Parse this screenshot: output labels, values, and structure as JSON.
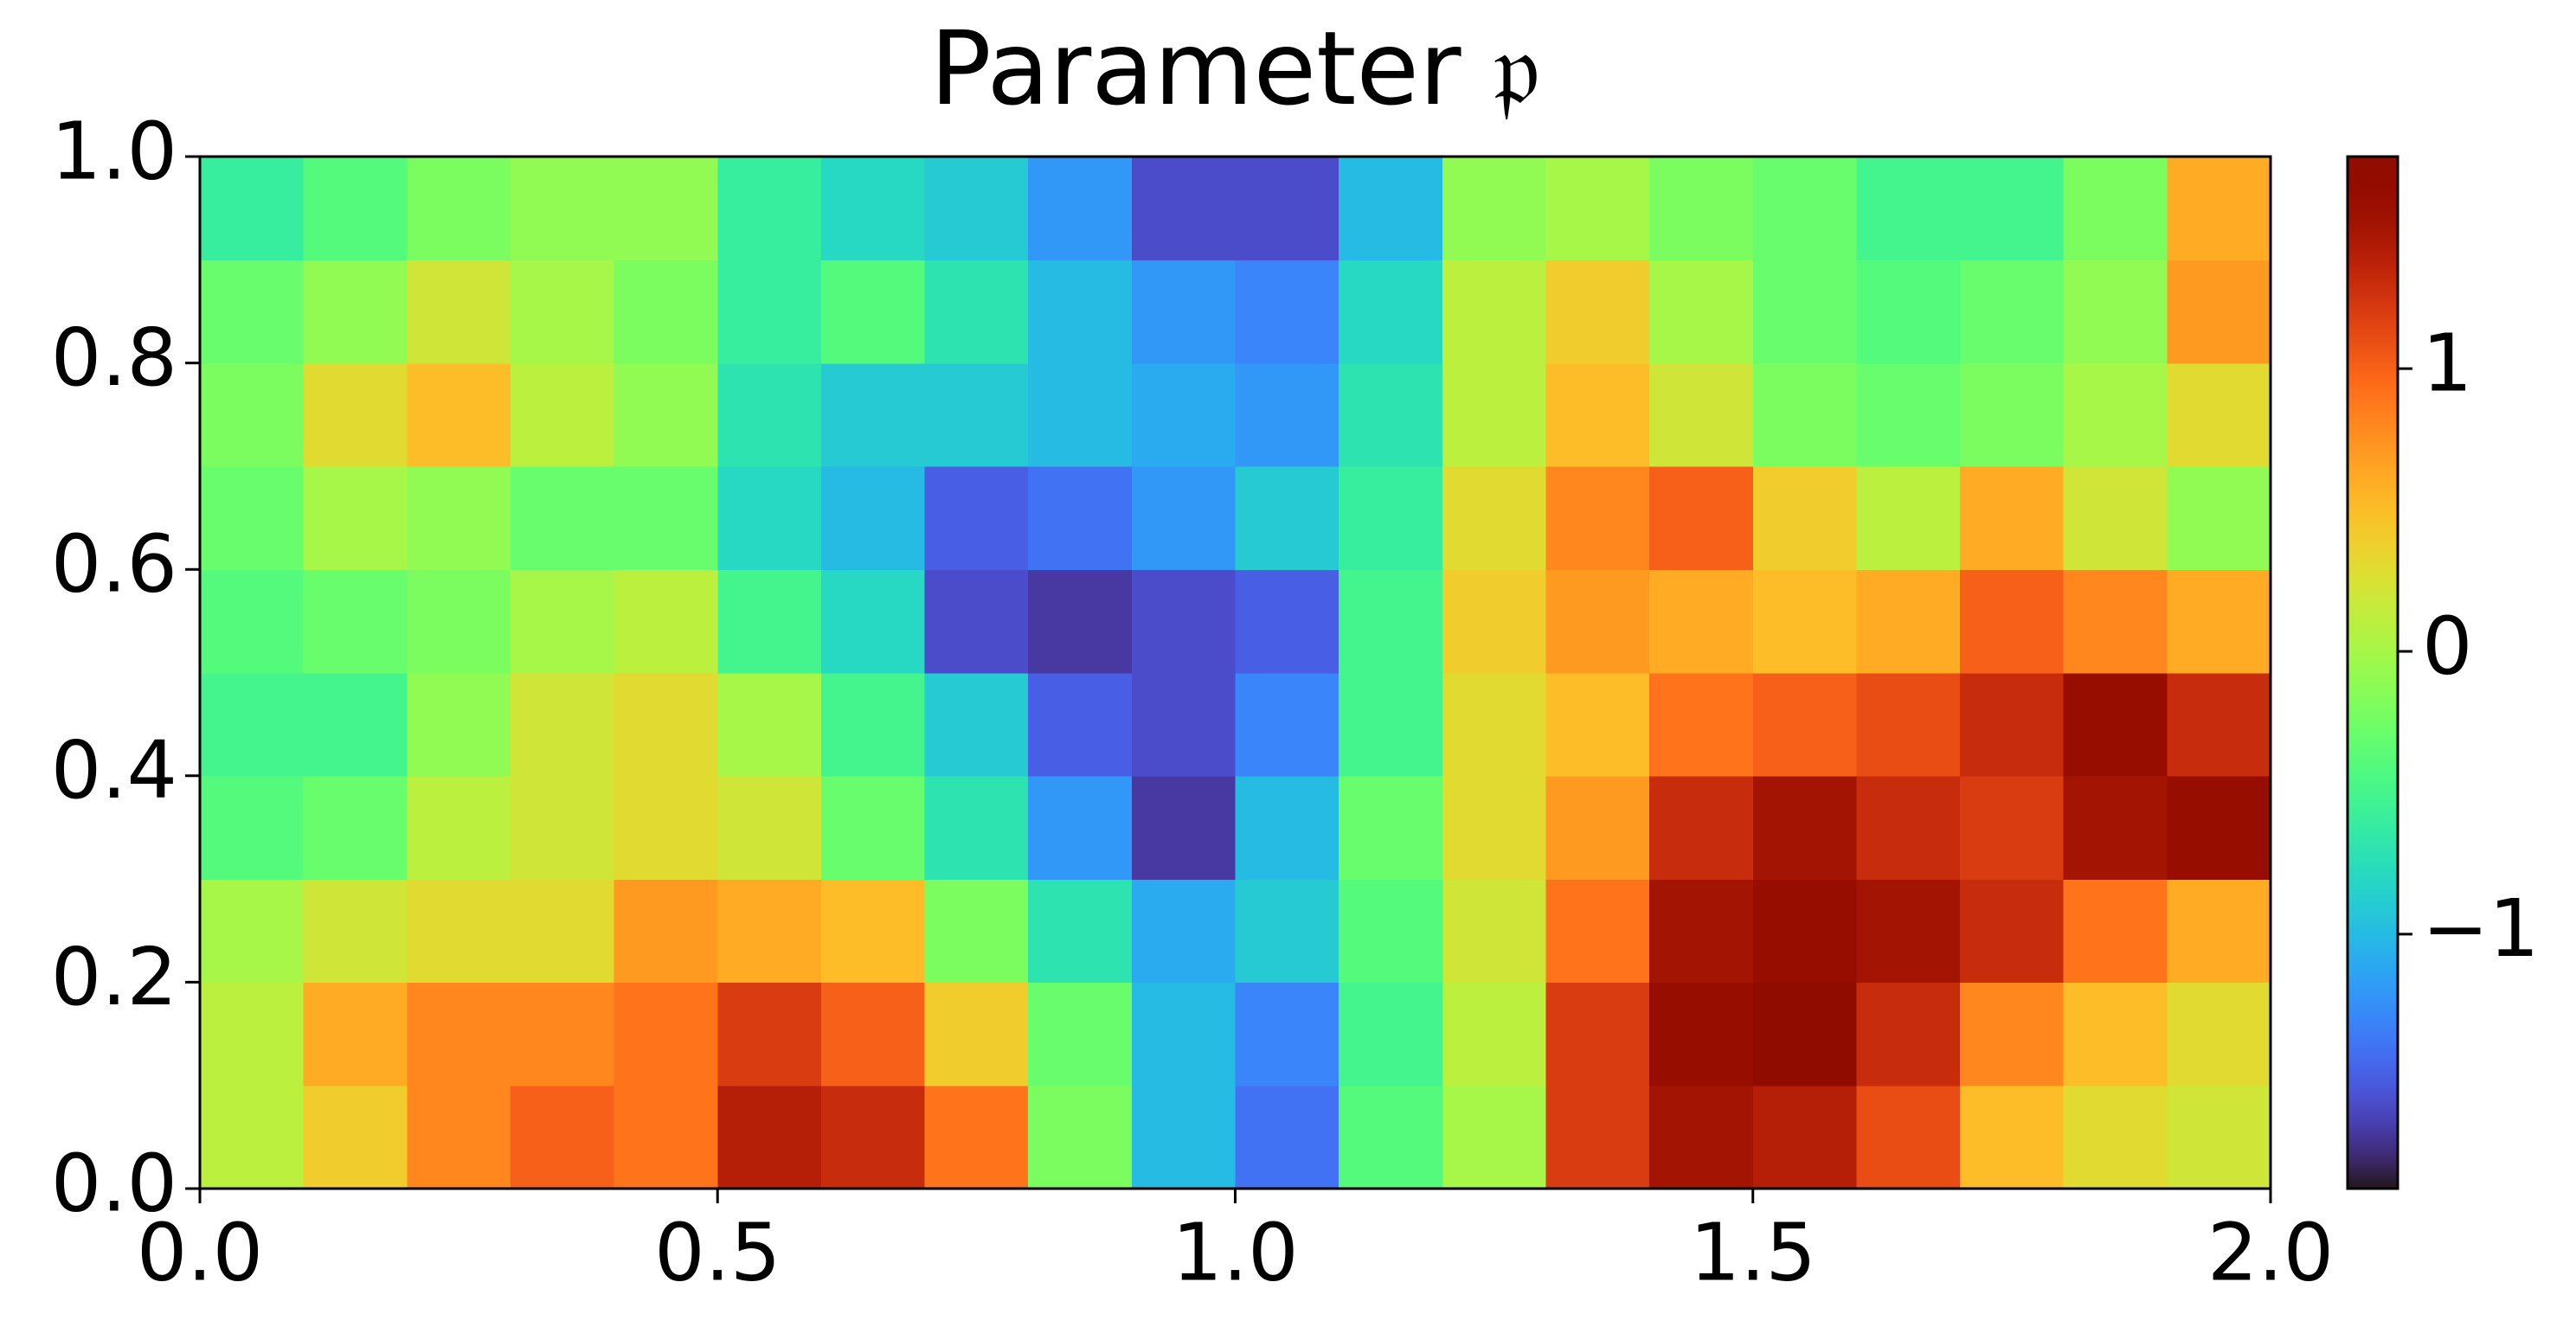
{
  "chart_data": {
    "type": "heatmap",
    "title": "Parameter 𝔭",
    "colormap": "turbo",
    "xlim": [
      0,
      2
    ],
    "ylim": [
      0,
      1
    ],
    "xbins": [
      0,
      0.1,
      0.2,
      0.3,
      0.4,
      0.5,
      0.6,
      0.7,
      0.8,
      0.9,
      1.0,
      1.1,
      1.2,
      1.3,
      1.4,
      1.5,
      1.6,
      1.7,
      1.8,
      1.9,
      2.0
    ],
    "ybins": [
      0,
      0.1,
      0.2,
      0.3,
      0.4,
      0.5,
      0.6,
      0.7,
      0.8,
      0.9,
      1.0
    ],
    "values": [
      [
        0.1,
        0.4,
        0.8,
        1.0,
        0.9,
        1.4,
        1.3,
        0.9,
        -0.2,
        -1.0,
        -1.4,
        -0.4,
        0.0,
        1.2,
        1.5,
        1.4,
        1.1,
        0.5,
        0.3,
        0.2
      ],
      [
        0.1,
        0.6,
        0.8,
        0.8,
        0.9,
        1.2,
        1.0,
        0.4,
        -0.3,
        -1.0,
        -1.3,
        -0.5,
        0.1,
        1.2,
        1.6,
        1.7,
        1.3,
        0.8,
        0.5,
        0.3
      ],
      [
        0.0,
        0.2,
        0.3,
        0.3,
        0.7,
        0.6,
        0.5,
        -0.2,
        -0.7,
        -1.1,
        -0.9,
        -0.4,
        0.2,
        0.9,
        1.5,
        1.6,
        1.5,
        1.3,
        0.9,
        0.6
      ],
      [
        -0.4,
        -0.3,
        0.1,
        0.2,
        0.3,
        0.2,
        -0.3,
        -0.7,
        -1.2,
        -1.7,
        -1.0,
        -0.3,
        0.3,
        0.7,
        1.3,
        1.5,
        1.3,
        1.2,
        1.5,
        1.6
      ],
      [
        -0.5,
        -0.5,
        -0.1,
        0.2,
        0.3,
        0.0,
        -0.5,
        -0.9,
        -1.5,
        -1.6,
        -1.3,
        -0.5,
        0.3,
        0.5,
        0.9,
        1.0,
        1.1,
        1.3,
        1.6,
        1.3
      ],
      [
        -0.4,
        -0.3,
        -0.2,
        0.0,
        0.1,
        -0.5,
        -0.8,
        -1.6,
        -1.7,
        -1.6,
        -1.5,
        -0.5,
        0.4,
        0.7,
        0.6,
        0.5,
        0.6,
        1.0,
        0.8,
        0.6
      ],
      [
        -0.3,
        0.0,
        -0.1,
        -0.3,
        -0.3,
        -0.8,
        -1.0,
        -1.5,
        -1.4,
        -1.2,
        -0.9,
        -0.6,
        0.3,
        0.8,
        1.0,
        0.4,
        0.1,
        0.6,
        0.2,
        -0.1
      ],
      [
        -0.2,
        0.3,
        0.5,
        0.1,
        -0.1,
        -0.7,
        -0.9,
        -0.9,
        -1.0,
        -1.1,
        -1.2,
        -0.7,
        0.1,
        0.5,
        0.2,
        -0.2,
        -0.3,
        -0.2,
        0.0,
        0.3
      ],
      [
        -0.3,
        -0.1,
        0.2,
        0.0,
        -0.2,
        -0.6,
        -0.4,
        -0.7,
        -1.0,
        -1.2,
        -1.3,
        -0.8,
        0.1,
        0.4,
        0.0,
        -0.3,
        -0.4,
        -0.3,
        -0.1,
        0.7
      ],
      [
        -0.6,
        -0.4,
        -0.2,
        -0.1,
        -0.1,
        -0.6,
        -0.8,
        -0.9,
        -1.2,
        -1.6,
        -1.6,
        -1.0,
        -0.1,
        0.0,
        -0.2,
        -0.3,
        -0.5,
        -0.5,
        -0.2,
        0.6
      ]
    ],
    "xticks": [
      {
        "value": 0,
        "label": "0.0"
      },
      {
        "value": 0.5,
        "label": "0.5"
      },
      {
        "value": 1,
        "label": "1.0"
      },
      {
        "value": 1.5,
        "label": "1.5"
      },
      {
        "value": 2,
        "label": "2.0"
      }
    ],
    "yticks": [
      {
        "value": 0,
        "label": "0.0"
      },
      {
        "value": 0.2,
        "label": "0.2"
      },
      {
        "value": 0.4,
        "label": "0.4"
      },
      {
        "value": 0.6,
        "label": "0.6"
      },
      {
        "value": 0.8,
        "label": "0.8"
      },
      {
        "value": 1,
        "label": "1.0"
      }
    ],
    "clim": [
      -1.9,
      1.75
    ],
    "cticks": [
      {
        "value": -1,
        "label": "−1"
      },
      0,
      1
    ]
  }
}
